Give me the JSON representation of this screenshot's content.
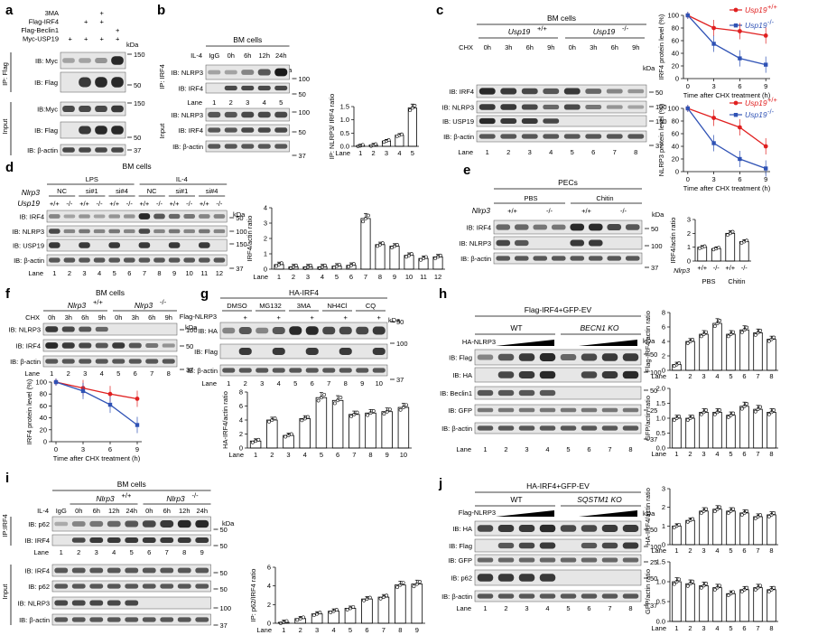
{
  "colors": {
    "wt": "#e02020",
    "ko": "#2f52b5",
    "blot": "#1a1a1a"
  },
  "panels": {
    "a": {
      "letter": "a",
      "conds": [
        "3MA",
        "Flag-IRF4",
        "Flag-Beclin1",
        "Myc-USP19"
      ],
      "signs": [
        [
          "",
          "",
          "+",
          ""
        ],
        [
          "",
          "+",
          "+",
          ""
        ],
        [
          "",
          "",
          "",
          "+"
        ],
        [
          "+",
          "+",
          "+",
          "+"
        ]
      ],
      "kda": "kDa",
      "groups": [
        "IP: Flag",
        "Input"
      ],
      "rows": [
        "IB: Myc",
        "IB: Flag",
        "IB:Myc",
        "IB: Flag",
        "IB: β-actin"
      ],
      "mw": [
        "150",
        "50",
        "150",
        "50",
        "37"
      ]
    },
    "b": {
      "letter": "b",
      "cell": "BM cells",
      "il": "IL-4",
      "times": [
        "IgG",
        "0h",
        "6h",
        "12h",
        "24h"
      ],
      "kda": "kDa",
      "groups": [
        "IP: IRF4",
        "Input"
      ],
      "rows": [
        "IB: NLRP3",
        "IB: IRF4",
        "IB: NLRP3",
        "IB: IRF4",
        "IB: β-actin"
      ],
      "mw": [
        "100",
        "50",
        "100",
        "50",
        "37"
      ],
      "lane_label": "Lane",
      "lanes": [
        "1",
        "2",
        "3",
        "4",
        "5"
      ],
      "ylabel": "IP: NLRP3/ IRF4 ratio",
      "yticks": [
        "0.0",
        "0.5",
        "1.0",
        "1.5"
      ]
    },
    "c": {
      "letter": "c",
      "cell": "BM cells",
      "chx": "CHX",
      "geno": [
        "Usp19",
        "Usp19"
      ],
      "sup": [
        "+/+",
        "-/-"
      ],
      "times": [
        "0h",
        "3h",
        "6h",
        "9h",
        "0h",
        "3h",
        "6h",
        "9h"
      ],
      "kda": "kDa",
      "rows": [
        "IB: IRF4",
        "IB: NLRP3",
        "IB: USP19",
        "IB: β-actin"
      ],
      "mw": [
        "50",
        "100",
        "150",
        "37"
      ],
      "lane_label": "Lane",
      "lanes": [
        "1",
        "2",
        "3",
        "4",
        "5",
        "6",
        "7",
        "8"
      ],
      "charts": [
        {
          "ylabel": "IRF4 protein level (%)",
          "xlabel": "Time after CHX treatment (h)"
        },
        {
          "ylabel": "NLRP3 protein level (%)",
          "xlabel": "Time after CHX treatment (h)"
        }
      ],
      "legend": [
        "Usp19",
        "Usp19"
      ],
      "legend_sup": [
        "+/+",
        "-/-"
      ],
      "xticks": [
        "0",
        "3",
        "6",
        "9"
      ],
      "yticks": [
        "0",
        "20",
        "40",
        "60",
        "80",
        "100"
      ]
    },
    "d": {
      "letter": "d",
      "cell": "BM cells",
      "stims": [
        "LPS",
        "IL-4"
      ],
      "sirna": [
        "NC",
        "si#1",
        "si#4",
        "NC",
        "si#1",
        "si#4"
      ],
      "geno": [
        "Nlrp3",
        "Usp19"
      ],
      "gt": [
        "+/+",
        "-/-",
        "+/+",
        "-/-",
        "+/+",
        "-/-",
        "+/+",
        "-/-",
        "+/+",
        "-/-",
        "+/+",
        "-/-"
      ],
      "kda": "kDa",
      "rows": [
        "IB: IRF4",
        "IB: NLRP3",
        "IB: USP19",
        "IB: β-actin"
      ],
      "mw": [
        "50",
        "100",
        "150",
        "37"
      ],
      "lane_label": "Lane",
      "lanes": [
        "1",
        "2",
        "3",
        "4",
        "5",
        "6",
        "7",
        "8",
        "9",
        "10",
        "11",
        "12"
      ],
      "ylabel": "IRF4/actin ratio",
      "yticks": [
        "0",
        "1",
        "2",
        "3",
        "4"
      ]
    },
    "e": {
      "letter": "e",
      "cell": "PECs",
      "stims": [
        "PBS",
        "Chitin"
      ],
      "geno": "Nlrp3",
      "gt": [
        "+/+",
        "-/-",
        "+/+",
        "-/-"
      ],
      "kda": "kDa",
      "rows": [
        "IB: IRF4",
        "IB: NLRP3",
        "IB: β-actin"
      ],
      "mw": [
        "50",
        "100",
        "37"
      ],
      "ylabel": "IRF4/actin ratio",
      "yticks": [
        "0",
        "1",
        "2",
        "3"
      ],
      "xgeno": "Nlrp3",
      "xgt": [
        "+/+",
        "-/-",
        "+/+",
        "-/-"
      ],
      "xgroups": [
        "PBS",
        "Chitin"
      ]
    },
    "f": {
      "letter": "f",
      "cell": "BM cells",
      "chx": "CHX",
      "geno": [
        "Nlrp3",
        "Nlrp3"
      ],
      "sup": [
        "+/+",
        "-/-"
      ],
      "times": [
        "0h",
        "3h",
        "6h",
        "9h",
        "0h",
        "3h",
        "6h",
        "9h"
      ],
      "kda": "kDa",
      "rows": [
        "IB: NLRP3",
        "IB: IRF4",
        "IB: β-actin"
      ],
      "mw": [
        "100",
        "50",
        "37"
      ],
      "lane_label": "Lane",
      "lanes": [
        "1",
        "2",
        "3",
        "4",
        "5",
        "6",
        "7",
        "8"
      ],
      "ylabel": "IRF4 protein level (%)",
      "xlabel": "Time after CHX treatment (h)",
      "xticks": [
        "0",
        "3",
        "6",
        "9"
      ],
      "yticks": [
        "0",
        "20",
        "40",
        "60",
        "80",
        "100"
      ]
    },
    "g": {
      "letter": "g",
      "header": "HA-IRF4",
      "flag": "Flag-NLRP3",
      "treats": [
        "DMSO",
        "MG132",
        "3MA",
        "NH4Cl",
        "CQ"
      ],
      "signs": [
        "",
        "+",
        "",
        "+",
        "",
        "+",
        "",
        "+",
        "",
        "+"
      ],
      "kda": "kDa",
      "rows": [
        "IB: HA",
        "IB: Flag",
        "IB: β-actin"
      ],
      "mw": [
        "50",
        "100",
        "37"
      ],
      "lane_label": "Lane",
      "lanes": [
        "1",
        "2",
        "3",
        "4",
        "5",
        "6",
        "7",
        "8",
        "9",
        "10"
      ],
      "ylabel": "HA-IRF4/actin ratio",
      "yticks": [
        "0",
        "2",
        "4",
        "6",
        "8"
      ]
    },
    "h": {
      "letter": "h",
      "header": "Flag-IRF4+GFP-EV",
      "geno": [
        "WT",
        "BECN1 KO"
      ],
      "ha": "HA-NLRP3",
      "kda": "kDa",
      "rows": [
        "IB: Flag",
        "IB: HA",
        "IB: Beclin1",
        "IB: GFP",
        "IB: β-actin"
      ],
      "mw": [
        "50",
        "100",
        "50",
        "25",
        "37"
      ],
      "lane_label": "Lane",
      "lanes": [
        "1",
        "2",
        "3",
        "4",
        "5",
        "6",
        "7",
        "8"
      ],
      "charts": [
        {
          "ylabel": "Flag-IRF4/actin ratio",
          "yticks": [
            "0",
            "2",
            "4",
            "6",
            "8"
          ]
        },
        {
          "ylabel": "GFP/actin ratio",
          "yticks": [
            "0.0",
            "0.5",
            "1.0",
            "1.5",
            "2.0"
          ]
        }
      ]
    },
    "i": {
      "letter": "i",
      "cell": "BM cells",
      "il": "IL-4",
      "geno": [
        "Nlrp3",
        "Nlrp3"
      ],
      "sup": [
        "+/+",
        "-/-"
      ],
      "times": [
        "IgG",
        "0h",
        "6h",
        "12h",
        "24h",
        "0h",
        "6h",
        "12h",
        "24h"
      ],
      "kda": "kDa",
      "groups": [
        "IP:IRF4",
        "Input"
      ],
      "rows": [
        "IB: p62",
        "IB: IRF4",
        "IB: IRF4",
        "IB: p62",
        "IB: NLRP3",
        "IB: β-actin"
      ],
      "mw": [
        "50",
        "50",
        "50",
        "50",
        "100",
        "37"
      ],
      "lane_label": "Lane",
      "lanes": [
        "1",
        "2",
        "3",
        "4",
        "5",
        "6",
        "7",
        "8",
        "9"
      ],
      "ylabel": "IP: p62/IRF4 ratio",
      "yticks": [
        "0",
        "2",
        "4",
        "6"
      ]
    },
    "j": {
      "letter": "j",
      "header": "HA-IRF4+GFP-EV",
      "geno": [
        "WT",
        "SQSTM1 KO"
      ],
      "flag": "Flag-NLRP3",
      "kda": "kDa",
      "rows": [
        "IB: HA",
        "IB: Flag",
        "IB: GFP",
        "IB: p62",
        "IB: β-actin"
      ],
      "mw": [
        "50",
        "100",
        "25",
        "50",
        "37"
      ],
      "lane_label": "Lane",
      "lanes": [
        "1",
        "2",
        "3",
        "4",
        "5",
        "6",
        "7",
        "8"
      ],
      "charts": [
        {
          "ylabel": "HA-IRF4/actin ratio",
          "yticks": [
            "0",
            "1",
            "2",
            "3"
          ]
        },
        {
          "ylabel": "GFP/actin ratio",
          "yticks": [
            "0.0",
            "0.5",
            "1.0",
            "1.5"
          ]
        }
      ]
    }
  },
  "chart_data": [
    {
      "panel": "b",
      "type": "bar",
      "categories": [
        "1",
        "2",
        "3",
        "4",
        "5"
      ],
      "values": [
        0.02,
        0.05,
        0.2,
        0.42,
        1.45
      ],
      "ylim": [
        0,
        1.5
      ]
    },
    {
      "panel": "c-irf4",
      "type": "line",
      "x": [
        0,
        3,
        6,
        9
      ],
      "series": [
        {
          "name": "Usp19 +/+",
          "values": [
            100,
            80,
            75,
            68
          ]
        },
        {
          "name": "Usp19 -/-",
          "values": [
            100,
            55,
            32,
            22
          ]
        }
      ],
      "ylim": [
        0,
        100
      ]
    },
    {
      "panel": "c-nlrp3",
      "type": "line",
      "x": [
        0,
        3,
        6,
        9
      ],
      "series": [
        {
          "name": "Usp19 +/+",
          "values": [
            100,
            85,
            70,
            40
          ]
        },
        {
          "name": "Usp19 -/-",
          "values": [
            100,
            45,
            20,
            5
          ]
        }
      ],
      "ylim": [
        0,
        100
      ]
    },
    {
      "panel": "d",
      "type": "bar",
      "categories": [
        "1",
        "2",
        "3",
        "4",
        "5",
        "6",
        "7",
        "8",
        "9",
        "10",
        "11",
        "12"
      ],
      "values": [
        0.3,
        0.15,
        0.15,
        0.15,
        0.2,
        0.25,
        3.3,
        1.6,
        1.5,
        0.9,
        0.7,
        0.8
      ],
      "ylim": [
        0,
        4
      ]
    },
    {
      "panel": "e",
      "type": "bar",
      "categories": [
        "+/+",
        "-/-",
        "+/+",
        "-/-"
      ],
      "values": [
        1.0,
        0.9,
        2.0,
        1.4
      ],
      "ylim": [
        0,
        3
      ]
    },
    {
      "panel": "f",
      "type": "line",
      "x": [
        0,
        3,
        6,
        9
      ],
      "series": [
        {
          "name": "Nlrp3 +/+",
          "values": [
            100,
            90,
            80,
            72
          ]
        },
        {
          "name": "Nlrp3 -/-",
          "values": [
            100,
            85,
            62,
            28
          ]
        }
      ],
      "ylim": [
        0,
        100
      ]
    },
    {
      "panel": "g",
      "type": "bar",
      "categories": [
        "1",
        "2",
        "3",
        "4",
        "5",
        "6",
        "7",
        "8",
        "9",
        "10"
      ],
      "values": [
        1.0,
        4.0,
        1.8,
        4.2,
        7.2,
        6.8,
        4.8,
        5.0,
        5.2,
        5.8
      ],
      "ylim": [
        0,
        8
      ]
    },
    {
      "panel": "h-flag",
      "type": "bar",
      "categories": [
        "1",
        "2",
        "3",
        "4",
        "5",
        "6",
        "7",
        "8"
      ],
      "values": [
        0.8,
        4.0,
        5.0,
        6.5,
        5.0,
        5.6,
        5.2,
        4.3
      ],
      "ylim": [
        0,
        8
      ]
    },
    {
      "panel": "h-gfp",
      "type": "bar",
      "categories": [
        "1",
        "2",
        "3",
        "4",
        "5",
        "6",
        "7",
        "8"
      ],
      "values": [
        1.0,
        1.0,
        1.2,
        1.2,
        1.1,
        1.4,
        1.3,
        1.2
      ],
      "ylim": [
        0,
        2
      ]
    },
    {
      "panel": "i",
      "type": "bar",
      "categories": [
        "1",
        "2",
        "3",
        "4",
        "5",
        "6",
        "7",
        "8",
        "9"
      ],
      "values": [
        0.1,
        0.5,
        1.0,
        1.3,
        1.6,
        2.6,
        2.8,
        4.1,
        4.2
      ],
      "ylim": [
        0,
        6
      ]
    },
    {
      "panel": "j-ha",
      "type": "bar",
      "categories": [
        "1",
        "2",
        "3",
        "4",
        "5",
        "6",
        "7",
        "8"
      ],
      "values": [
        1.0,
        1.3,
        1.8,
        1.9,
        1.8,
        1.7,
        1.5,
        1.6
      ],
      "ylim": [
        0,
        3
      ]
    },
    {
      "panel": "j-gfp",
      "type": "bar",
      "categories": [
        "1",
        "2",
        "3",
        "4",
        "5",
        "6",
        "7",
        "8"
      ],
      "values": [
        1.0,
        0.95,
        0.9,
        0.85,
        0.7,
        0.8,
        0.85,
        0.8
      ],
      "ylim": [
        0,
        1.5
      ]
    }
  ]
}
